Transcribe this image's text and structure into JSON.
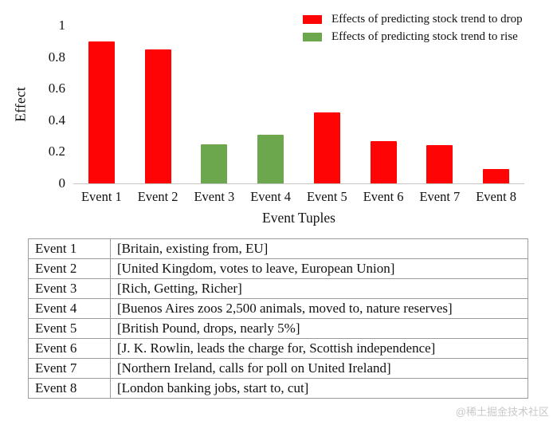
{
  "chart_data": {
    "type": "bar",
    "title": "",
    "xlabel": "Event Tuples",
    "ylabel": "Effect",
    "ylim": [
      0,
      1
    ],
    "ytick_labels": [
      "0",
      "0.2",
      "0.4",
      "0.6",
      "0.8",
      "1"
    ],
    "grid": false,
    "legend_position": "top-right",
    "categories": [
      "Event 1",
      "Event 2",
      "Event 3",
      "Event 4",
      "Event 5",
      "Event 6",
      "Event 7",
      "Event 8"
    ],
    "values": [
      0.9,
      0.85,
      0.25,
      0.31,
      0.45,
      0.27,
      0.24,
      0.09
    ],
    "bar_series": [
      "drop",
      "drop",
      "rise",
      "rise",
      "drop",
      "drop",
      "drop",
      "drop"
    ],
    "legend": [
      {
        "name": "drop",
        "label": "Effects of predicting stock trend to drop",
        "color": "#fe0404"
      },
      {
        "name": "rise",
        "label": "Effects of predicting stock trend to rise",
        "color": "#6ca74e"
      }
    ],
    "colors": {
      "axis_line": "#c6c6c6",
      "drop": "#fe0404",
      "rise": "#6ca74e"
    }
  },
  "table": {
    "rows": [
      {
        "event": "Event 1",
        "tuple": "[Britain, existing from, EU]"
      },
      {
        "event": "Event 2",
        "tuple": "[United Kingdom, votes to leave, European Union]"
      },
      {
        "event": "Event 3",
        "tuple": "[Rich, Getting, Richer]"
      },
      {
        "event": "Event 4",
        "tuple": "[Buenos Aires zoos 2,500 animals, moved to, nature reserves]"
      },
      {
        "event": "Event 5",
        "tuple": "[British Pound, drops, nearly 5%]"
      },
      {
        "event": "Event 6",
        "tuple": "[J. K. Rowlin, leads the charge for, Scottish independence]"
      },
      {
        "event": "Event 7",
        "tuple": "[Northern Ireland, calls for poll on United Ireland]"
      },
      {
        "event": "Event 8",
        "tuple": "[London banking jobs, start to, cut]"
      }
    ]
  },
  "watermark": "@稀土掘金技术社区"
}
